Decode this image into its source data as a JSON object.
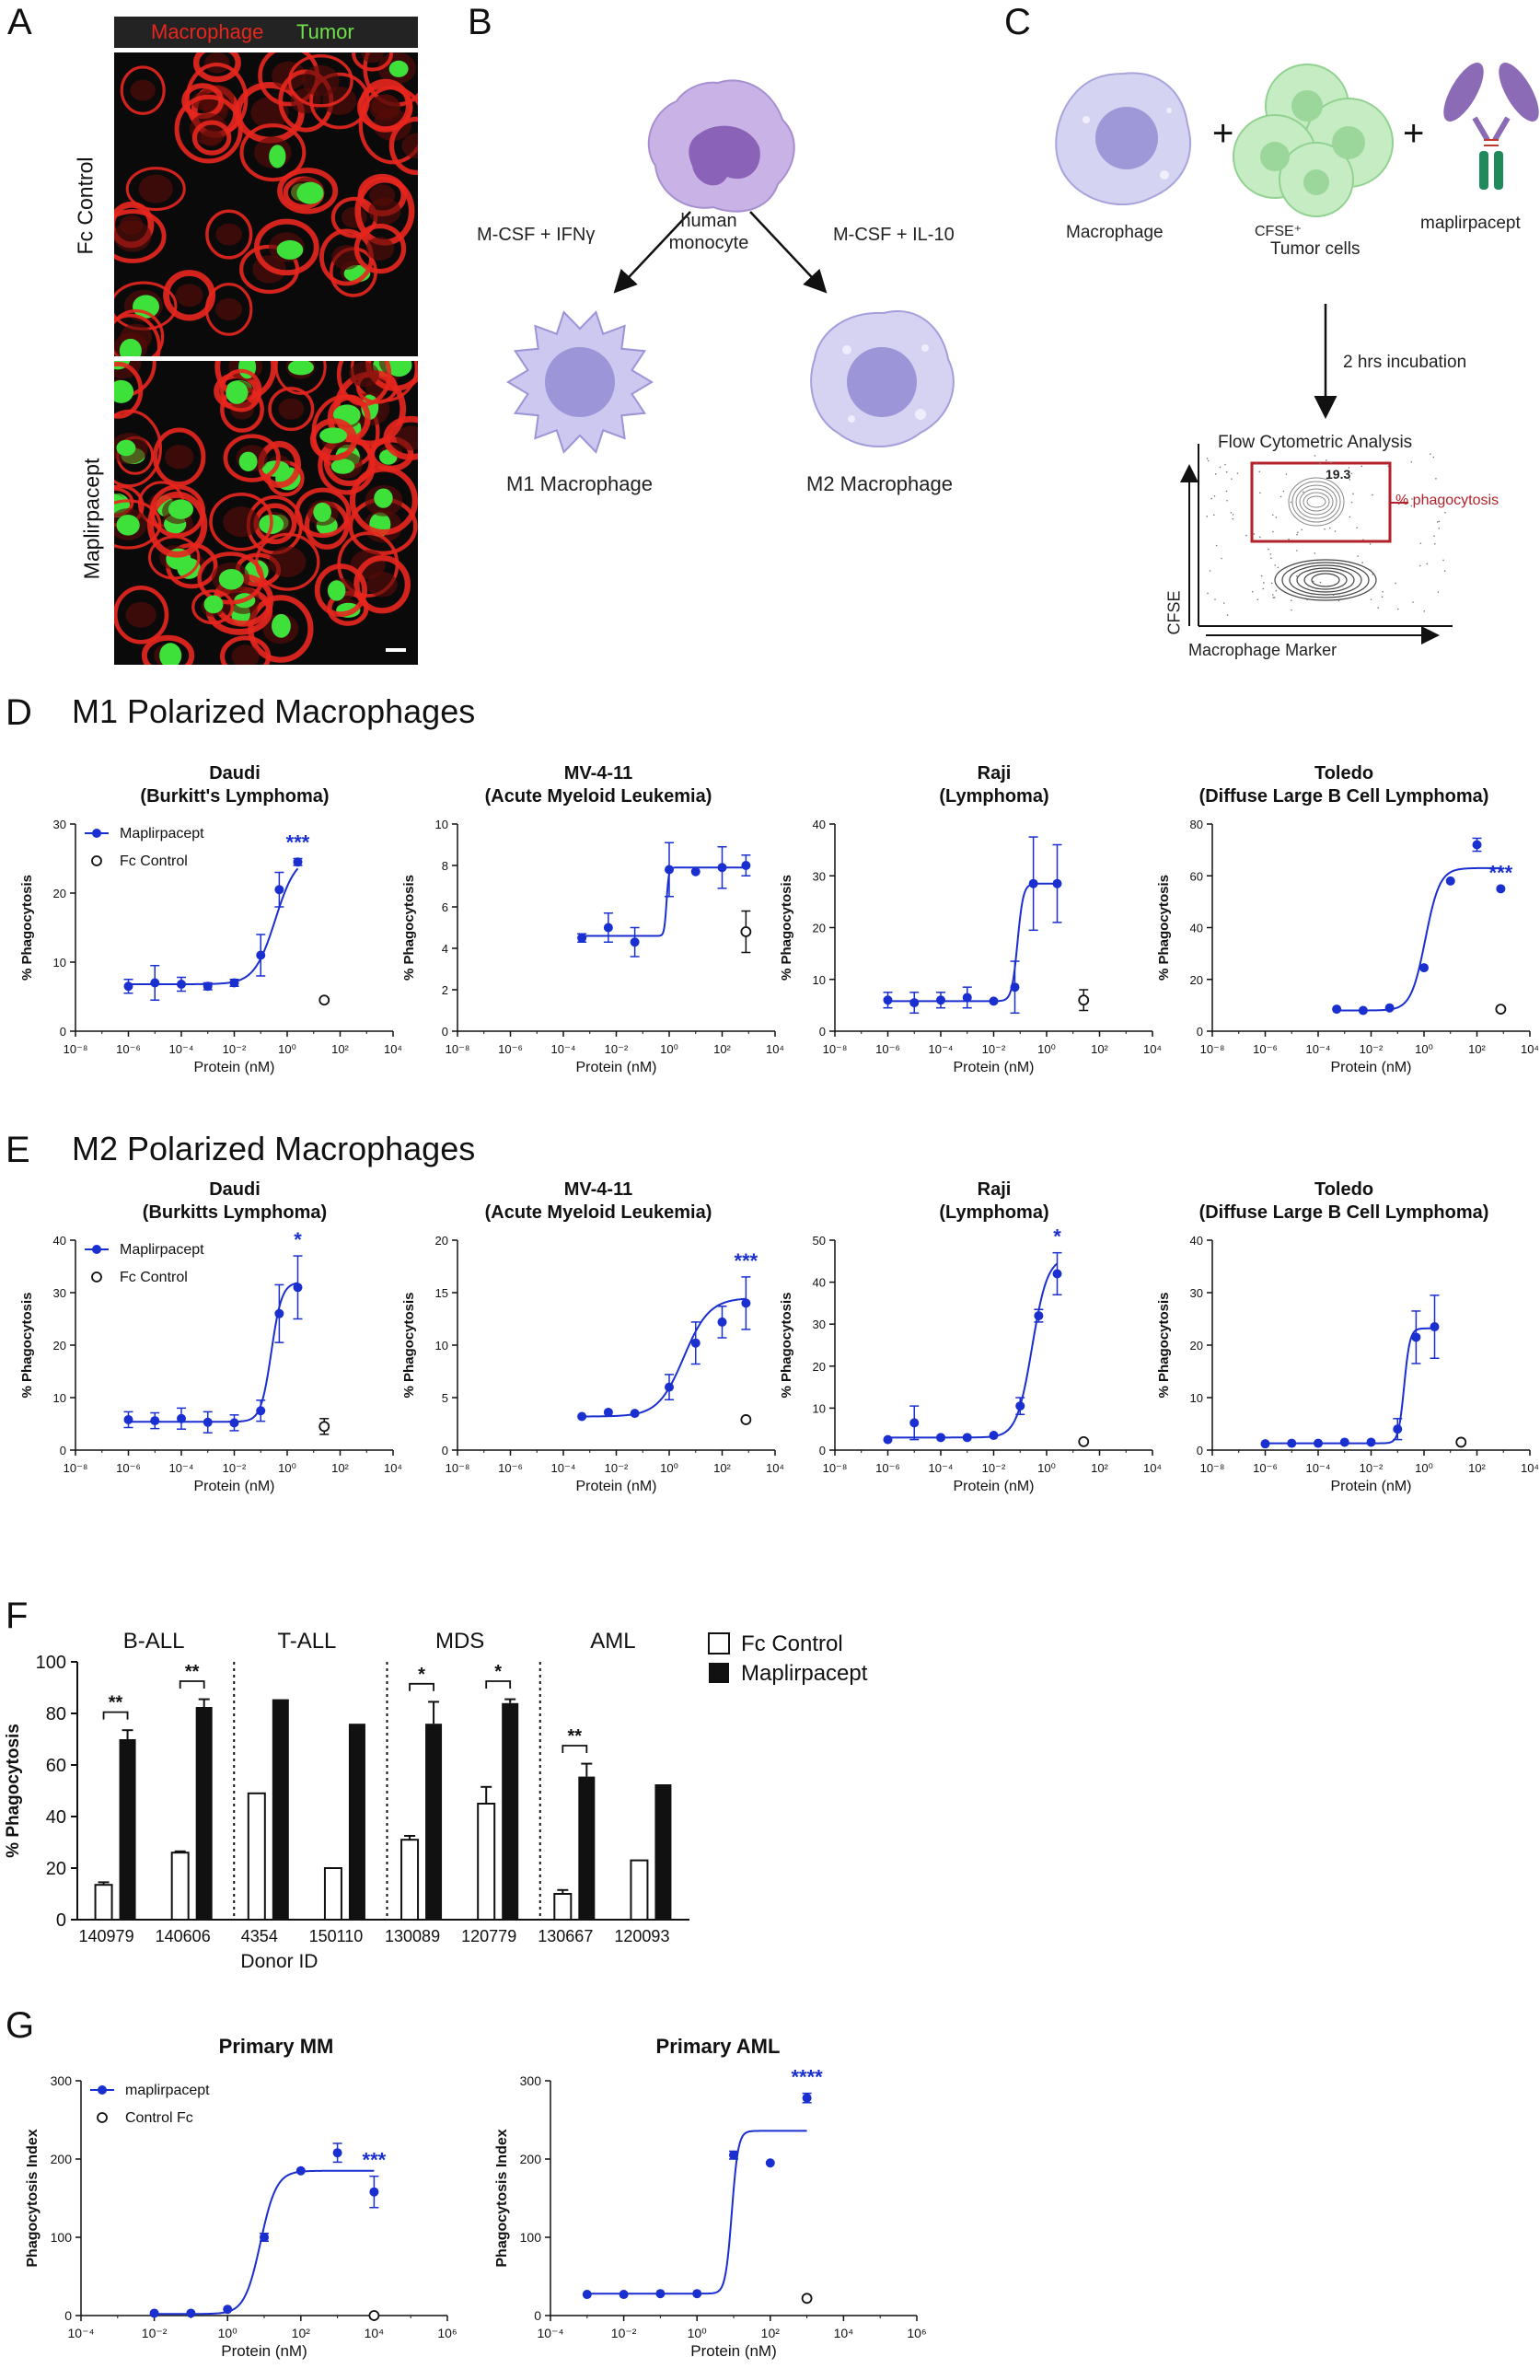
{
  "panel_letters": {
    "A": "A",
    "B": "B",
    "C": "C",
    "D": "D",
    "E": "E",
    "F": "F",
    "G": "G"
  },
  "panel_a": {
    "legend_macrophage": "Macrophage",
    "legend_tumor": "Tumor",
    "top_label": "Fc Control",
    "bottom_label": "Maplirpacept",
    "colors": {
      "macrophage": "#e8261e",
      "tumor": "#3ee03a"
    }
  },
  "panel_b": {
    "monocyte_label": "human\nmonocyte",
    "arrow_left_label": "M-CSF + IFNγ",
    "arrow_right_label": "M-CSF + IL-10",
    "m1_label": "M1 Macrophage",
    "m2_label": "M2 Macrophage"
  },
  "panel_c": {
    "macrophage_label": "Macrophage",
    "tumor_label_line1": "CFSE⁺",
    "tumor_label_line2": "Tumor cells",
    "drug_label": "maplirpacept",
    "plus": "+",
    "incubation": "2 hrs incubation",
    "flow_title": "Flow Cytometric Analysis",
    "gate_value": "19.3",
    "gate_label": "% phagocytosis",
    "y_axis": "CFSE",
    "x_axis": "Macrophage Marker"
  },
  "row_d_title": "M1 Polarized Macrophages",
  "row_e_title": "M2 Polarized Macrophages",
  "panel_f_xlabel": "Donor  ID",
  "chart_data": [
    {
      "id": "D1",
      "type": "scatter",
      "title": "Daudi\n(Burkitt's Lymphoma)",
      "xlabel": "Protein (nM)",
      "ylabel": "% Phagocytosis",
      "xscale": "log",
      "xlim": [
        -8,
        4
      ],
      "xticks": [
        "10⁻⁸",
        "10⁻⁶",
        "10⁻⁴",
        "10⁻²",
        "10⁰",
        "10²",
        "10⁴"
      ],
      "ylim": [
        0,
        30
      ],
      "yticks": [
        0,
        10,
        20,
        30
      ],
      "legend": [
        "Maplirpacept",
        "Fc Control"
      ],
      "significance": "***",
      "series": [
        {
          "name": "Maplirpacept",
          "x": [
            -6,
            -5,
            -4,
            -3,
            -2,
            -1,
            -0.3,
            0.4
          ],
          "y": [
            6.5,
            7,
            6.8,
            6.5,
            7,
            11,
            20.5,
            24.5
          ],
          "err": [
            1,
            2.5,
            1,
            0.5,
            0.5,
            3,
            2.5,
            0.5
          ]
        },
        {
          "name": "Fc Control",
          "x": [
            1.4
          ],
          "y": [
            4.5
          ],
          "err": [
            0
          ]
        }
      ],
      "fit": {
        "bottom": 6.8,
        "top": 25.5,
        "ec50": -0.45,
        "hill": 1.1
      }
    },
    {
      "id": "D2",
      "type": "scatter",
      "title": "MV-4-11\n(Acute Myeloid Leukemia)",
      "xlabel": "Protein (nM)",
      "ylabel": "% Phagocytosis",
      "xscale": "log",
      "xlim": [
        -8,
        4
      ],
      "xticks": [
        "10⁻⁸",
        "10⁻⁶",
        "10⁻⁴",
        "10⁻²",
        "10⁰",
        "10²",
        "10⁴"
      ],
      "ylim": [
        0,
        10
      ],
      "yticks": [
        0,
        2,
        4,
        6,
        8,
        10
      ],
      "significance": "",
      "series": [
        {
          "name": "Maplirpacept",
          "x": [
            -3.3,
            -2.3,
            -1.3,
            0,
            1,
            2,
            2.9
          ],
          "y": [
            4.5,
            5,
            4.3,
            7.8,
            7.7,
            7.9,
            8
          ],
          "err": [
            0.2,
            0.7,
            0.7,
            1.3,
            0,
            1,
            0.5
          ]
        },
        {
          "name": "Fc Control",
          "x": [
            2.9
          ],
          "y": [
            4.8
          ],
          "err": [
            1
          ]
        }
      ],
      "fit": {
        "bottom": 4.6,
        "top": 7.9,
        "ec50": -0.1,
        "hill": 10
      }
    },
    {
      "id": "D3",
      "type": "scatter",
      "title": "Raji\n(Lymphoma)",
      "xlabel": "Protein (nM)",
      "ylabel": "% Phagocytosis",
      "xscale": "log",
      "xlim": [
        -8,
        4
      ],
      "xticks": [
        "10⁻⁸",
        "10⁻⁶",
        "10⁻⁴",
        "10⁻²",
        "10⁰",
        "10²",
        "10⁴"
      ],
      "ylim": [
        0,
        40
      ],
      "yticks": [
        0,
        10,
        20,
        30,
        40
      ],
      "significance": "",
      "series": [
        {
          "name": "Maplirpacept",
          "x": [
            -6,
            -5,
            -4,
            -3,
            -2,
            -1.2,
            -0.5,
            0.4
          ],
          "y": [
            6,
            5.5,
            6,
            6.5,
            5.8,
            8.5,
            28.5,
            28.5
          ],
          "err": [
            1.5,
            2,
            1.5,
            2,
            0,
            5,
            9,
            7.5
          ]
        },
        {
          "name": "Fc Control",
          "x": [
            1.4
          ],
          "y": [
            6
          ],
          "err": [
            2
          ]
        }
      ],
      "fit": {
        "bottom": 5.8,
        "top": 28.5,
        "ec50": -1.1,
        "hill": 4
      }
    },
    {
      "id": "D4",
      "type": "scatter",
      "title": "Toledo\n(Diffuse Large B Cell Lymphoma)",
      "xlabel": "Protein (nM)",
      "ylabel": "% Phagocytosis",
      "xscale": "log",
      "xlim": [
        -8,
        4
      ],
      "xticks": [
        "10⁻⁸",
        "10⁻⁶",
        "10⁻⁴",
        "10⁻²",
        "10⁰",
        "10²",
        "10⁴"
      ],
      "ylim": [
        0,
        80
      ],
      "yticks": [
        0,
        20,
        40,
        60,
        80
      ],
      "significance": "***",
      "series": [
        {
          "name": "Maplirpacept",
          "x": [
            -3.3,
            -2.3,
            -1.3,
            0,
            1,
            2,
            2.9
          ],
          "y": [
            8.5,
            8,
            9,
            24.5,
            58,
            72,
            55
          ],
          "err": [
            0,
            0,
            0,
            0,
            0,
            2.5,
            0
          ]
        },
        {
          "name": "Fc Control",
          "x": [
            2.9
          ],
          "y": [
            8.5
          ],
          "err": [
            0
          ]
        }
      ],
      "fit": {
        "bottom": 8,
        "top": 63,
        "ec50": 0.05,
        "hill": 1.6
      }
    },
    {
      "id": "E1",
      "type": "scatter",
      "title": "Daudi\n(Burkitts Lymphoma)",
      "xlabel": "Protein (nM)",
      "ylabel": "% Phagocytosis",
      "xscale": "log",
      "xlim": [
        -8,
        4
      ],
      "xticks": [
        "10⁻⁸",
        "10⁻⁶",
        "10⁻⁴",
        "10⁻²",
        "10⁰",
        "10²",
        "10⁴"
      ],
      "ylim": [
        0,
        40
      ],
      "yticks": [
        0,
        10,
        20,
        30,
        40
      ],
      "legend": [
        "Maplirpacept",
        "Fc Control"
      ],
      "significance": "*",
      "series": [
        {
          "name": "Maplirpacept",
          "x": [
            -6,
            -5,
            -4,
            -3,
            -2,
            -1,
            -0.3,
            0.4
          ],
          "y": [
            5.8,
            5.6,
            6,
            5.3,
            5.2,
            7.5,
            26,
            31
          ],
          "err": [
            1.5,
            1.5,
            2,
            2,
            1.5,
            2,
            5.5,
            6
          ]
        },
        {
          "name": "Fc Control",
          "x": [
            1.4
          ],
          "y": [
            4.5
          ],
          "err": [
            1.5
          ]
        }
      ],
      "fit": {
        "bottom": 5.4,
        "top": 32,
        "ec50": -0.6,
        "hill": 2.2
      }
    },
    {
      "id": "E2",
      "type": "scatter",
      "title": "MV-4-11\n(Acute Myeloid Leukemia)",
      "xlabel": "Protein (nM)",
      "ylabel": "% Phagocytosis",
      "xscale": "log",
      "xlim": [
        -8,
        4
      ],
      "xticks": [
        "10⁻⁸",
        "10⁻⁶",
        "10⁻⁴",
        "10⁻²",
        "10⁰",
        "10²",
        "10⁴"
      ],
      "ylim": [
        0,
        20
      ],
      "yticks": [
        0,
        5,
        10,
        15,
        20
      ],
      "significance": "***",
      "series": [
        {
          "name": "Maplirpacept",
          "x": [
            -3.3,
            -2.3,
            -1.3,
            0,
            1,
            2,
            2.9
          ],
          "y": [
            3.2,
            3.6,
            3.5,
            6,
            10.2,
            12.2,
            14
          ],
          "err": [
            0,
            0,
            0,
            1.2,
            2,
            1.5,
            2.5
          ]
        },
        {
          "name": "Fc Control",
          "x": [
            2.9
          ],
          "y": [
            2.9
          ],
          "err": [
            0
          ]
        }
      ],
      "fit": {
        "bottom": 3.2,
        "top": 14.5,
        "ec50": 0.55,
        "hill": 0.9
      }
    },
    {
      "id": "E3",
      "type": "scatter",
      "title": "Raji\n(Lymphoma)",
      "xlabel": "Protein (nM)",
      "ylabel": "% Phagocytosis",
      "xscale": "log",
      "xlim": [
        -8,
        4
      ],
      "xticks": [
        "10⁻⁸",
        "10⁻⁶",
        "10⁻⁴",
        "10⁻²",
        "10⁰",
        "10²",
        "10⁴"
      ],
      "ylim": [
        0,
        50
      ],
      "yticks": [
        0,
        10,
        20,
        30,
        40,
        50
      ],
      "significance": "*",
      "series": [
        {
          "name": "Maplirpacept",
          "x": [
            -6,
            -5,
            -4,
            -3,
            -2,
            -1,
            -0.3,
            0.4
          ],
          "y": [
            2.5,
            6.5,
            3,
            3,
            3.5,
            10.5,
            32,
            42
          ],
          "err": [
            0,
            4,
            0,
            0,
            0,
            2,
            1.5,
            5
          ]
        },
        {
          "name": "Fc Control",
          "x": [
            1.4
          ],
          "y": [
            2
          ],
          "err": [
            0
          ]
        }
      ],
      "fit": {
        "bottom": 3,
        "top": 46,
        "ec50": -0.55,
        "hill": 1.5
      }
    },
    {
      "id": "E4",
      "type": "scatter",
      "title": "Toledo\n(Diffuse Large B Cell Lymphoma)",
      "xlabel": "Protein (nM)",
      "ylabel": "% Phagocytosis",
      "xscale": "log",
      "xlim": [
        -8,
        4
      ],
      "xticks": [
        "10⁻⁸",
        "10⁻⁶",
        "10⁻⁴",
        "10⁻²",
        "10⁰",
        "10²",
        "10⁴"
      ],
      "ylim": [
        0,
        40
      ],
      "yticks": [
        0,
        10,
        20,
        30,
        40
      ],
      "significance": "",
      "series": [
        {
          "name": "Maplirpacept",
          "x": [
            -6,
            -5,
            -4,
            -3,
            -2,
            -1,
            -0.3,
            0.4
          ],
          "y": [
            1.2,
            1.3,
            1.3,
            1.5,
            1.5,
            4,
            21.5,
            23.5
          ],
          "err": [
            0,
            0,
            0,
            0,
            0,
            2,
            5,
            6
          ]
        },
        {
          "name": "Fc Control",
          "x": [
            1.4
          ],
          "y": [
            1.5
          ],
          "err": [
            0
          ]
        }
      ],
      "fit": {
        "bottom": 1.3,
        "top": 23.2,
        "ec50": -0.75,
        "hill": 4
      }
    },
    {
      "id": "F",
      "type": "bar",
      "ylabel": "% Phagocytosis",
      "ylim": [
        0,
        100
      ],
      "yticks": [
        0,
        20,
        40,
        60,
        80,
        100
      ],
      "groups": [
        "B-ALL",
        "T-ALL",
        "MDS",
        "AML"
      ],
      "categories": [
        "140979",
        "140606",
        "4354",
        "150110",
        "130089",
        "120779",
        "130667",
        "120093"
      ],
      "legend": [
        "Fc Control",
        "Maplirpacept"
      ],
      "series": [
        {
          "name": "Fc Control",
          "values": [
            13.5,
            26,
            49,
            20,
            31,
            45,
            10,
            23
          ],
          "err": [
            1,
            0.5,
            0,
            0,
            1.5,
            6.5,
            1.5,
            0
          ]
        },
        {
          "name": "Maplirpacept",
          "values": [
            70,
            82.5,
            85.5,
            76,
            76,
            84,
            55.5,
            52.5
          ],
          "err": [
            3.5,
            3,
            0,
            0,
            8.5,
            1.5,
            5,
            0
          ]
        }
      ],
      "significance": [
        "**",
        "**",
        "",
        "",
        "*",
        "*",
        "**",
        ""
      ]
    },
    {
      "id": "G1",
      "type": "scatter",
      "title": "Primary MM",
      "xlabel": "Protein (nM)",
      "ylabel": "Phagocytosis Index",
      "xscale": "log",
      "xlim": [
        -4,
        6
      ],
      "xticks": [
        "10⁻⁴",
        "10⁻²",
        "10⁰",
        "10²",
        "10⁴",
        "10⁶"
      ],
      "ylim": [
        0,
        300
      ],
      "yticks": [
        0,
        100,
        200,
        300
      ],
      "legend": [
        "maplirpacept",
        "Control Fc"
      ],
      "significance": "***",
      "series": [
        {
          "name": "maplirpacept",
          "x": [
            -2,
            -1,
            0,
            1,
            2,
            3,
            4
          ],
          "y": [
            3,
            3,
            8,
            100,
            185,
            208,
            158
          ],
          "err": [
            0,
            0,
            0,
            5,
            0,
            12,
            20
          ]
        },
        {
          "name": "Control Fc",
          "x": [
            4
          ],
          "y": [
            0
          ],
          "err": [
            0
          ]
        }
      ],
      "fit": {
        "bottom": 2,
        "top": 185,
        "ec50": 0.9,
        "hill": 2
      }
    },
    {
      "id": "G2",
      "type": "scatter",
      "title": "Primary AML",
      "xlabel": "Protein (nM)",
      "ylabel": "Phagocytosis Index",
      "xscale": "log",
      "xlim": [
        -4,
        6
      ],
      "xticks": [
        "10⁻⁴",
        "10⁻²",
        "10⁰",
        "10²",
        "10⁴",
        "10⁶"
      ],
      "ylim": [
        0,
        300
      ],
      "yticks": [
        0,
        100,
        200,
        300
      ],
      "significance": "****",
      "series": [
        {
          "name": "maplirpacept",
          "x": [
            -3,
            -2,
            -1,
            0,
            1,
            2,
            3
          ],
          "y": [
            27,
            27,
            28,
            28,
            205,
            195,
            278
          ],
          "err": [
            0,
            0,
            0,
            0,
            5,
            0,
            6
          ]
        },
        {
          "name": "Control Fc",
          "x": [
            3
          ],
          "y": [
            22
          ],
          "err": [
            0
          ]
        }
      ],
      "fit": {
        "bottom": 28,
        "top": 236,
        "ec50": 0.95,
        "hill": 5
      }
    }
  ]
}
